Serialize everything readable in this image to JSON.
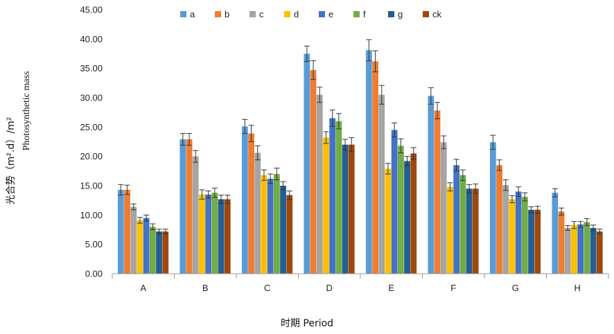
{
  "chart_data": {
    "type": "bar",
    "title": "",
    "ylabel_cn": "光合势（m².d）/m²",
    "ylabel_en": "Photosynthetic mass",
    "xlabel": "时期 Period",
    "ylim": [
      0,
      45
    ],
    "ytick_step": 5,
    "ytick_labels": [
      "0.00",
      "5.00",
      "10.00",
      "15.00",
      "20.00",
      "25.00",
      "30.00",
      "35.00",
      "40.00",
      "45.00"
    ],
    "grid": false,
    "legend_position": "top",
    "categories": [
      "A",
      "B",
      "C",
      "D",
      "E",
      "F",
      "G",
      "H"
    ],
    "series": [
      {
        "name": "a",
        "color": "#5B9BD5",
        "values": [
          14.3,
          22.9,
          25.1,
          37.5,
          38.1,
          30.3,
          22.4,
          13.8
        ],
        "errors": [
          0.9,
          1.0,
          1.2,
          1.3,
          1.8,
          1.4,
          1.2,
          0.7
        ]
      },
      {
        "name": "b",
        "color": "#ED7D31",
        "values": [
          14.3,
          22.9,
          23.9,
          34.7,
          36.2,
          27.8,
          18.5,
          10.6
        ],
        "errors": [
          0.8,
          1.0,
          1.4,
          1.6,
          1.8,
          1.4,
          0.9,
          0.6
        ]
      },
      {
        "name": "c",
        "color": "#A5A5A5",
        "values": [
          11.4,
          20.0,
          20.6,
          30.5,
          30.5,
          22.4,
          15.1,
          7.8
        ],
        "errors": [
          0.5,
          1.0,
          1.2,
          1.3,
          1.6,
          1.1,
          0.9,
          0.4
        ]
      },
      {
        "name": "d",
        "color": "#FFC000",
        "values": [
          9.1,
          13.5,
          16.8,
          23.2,
          17.9,
          14.8,
          12.7,
          8.3
        ],
        "errors": [
          0.5,
          0.8,
          0.9,
          1.0,
          0.9,
          0.7,
          0.6,
          0.6
        ]
      },
      {
        "name": "e",
        "color": "#4472C4",
        "values": [
          9.5,
          13.5,
          16.2,
          26.5,
          24.5,
          18.5,
          14.0,
          8.4
        ],
        "errors": [
          0.5,
          0.6,
          0.8,
          1.4,
          1.2,
          1.0,
          0.8,
          0.5
        ]
      },
      {
        "name": "f",
        "color": "#70AD47",
        "values": [
          8.0,
          13.8,
          17.0,
          26.0,
          21.8,
          16.8,
          13.1,
          8.8
        ],
        "errors": [
          0.5,
          0.8,
          1.0,
          1.3,
          1.2,
          0.9,
          0.7,
          0.6
        ]
      },
      {
        "name": "g",
        "color": "#255E91",
        "values": [
          7.2,
          12.7,
          15.0,
          22.0,
          19.2,
          14.5,
          10.9,
          7.8
        ],
        "errors": [
          0.4,
          0.7,
          0.7,
          0.9,
          0.8,
          0.7,
          0.5,
          0.5
        ]
      },
      {
        "name": "ck",
        "color": "#9E480E",
        "values": [
          7.2,
          12.7,
          13.4,
          22.0,
          20.5,
          14.5,
          10.9,
          7.2
        ],
        "errors": [
          0.4,
          0.7,
          0.7,
          1.2,
          1.0,
          0.8,
          0.6,
          0.4
        ]
      }
    ]
  }
}
